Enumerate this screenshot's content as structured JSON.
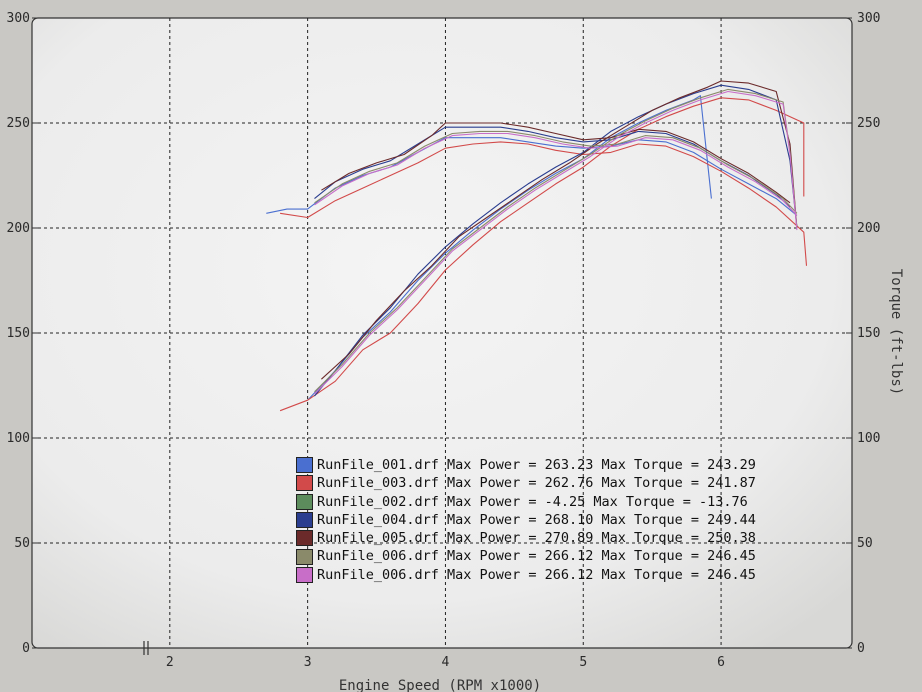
{
  "chart_data": {
    "type": "line",
    "xlabel": "Engine Speed (RPM x1000)",
    "ylabel_right": "Torque (ft-lbs)",
    "x_ticks": [
      "2",
      "3",
      "4",
      "5",
      "6"
    ],
    "y_ticks_left": [
      "0",
      "50",
      "100",
      "150",
      "200",
      "250",
      "300"
    ],
    "y_ticks_right": [
      "0",
      "50",
      "100",
      "150",
      "200",
      "250",
      "300"
    ],
    "xlim": [
      1.0,
      6.95
    ],
    "ylim": [
      0,
      300
    ],
    "grid": true,
    "legend_position": "bottom-center",
    "series": [
      {
        "name": "RunFile_001.drf",
        "color": "#4a6fd0",
        "power": [
          [
            3.0,
            118
          ],
          [
            3.2,
            132
          ],
          [
            3.4,
            148
          ],
          [
            3.6,
            160
          ],
          [
            3.8,
            175
          ],
          [
            4.0,
            188
          ],
          [
            4.2,
            199
          ],
          [
            4.4,
            209
          ],
          [
            4.6,
            218
          ],
          [
            4.8,
            226
          ],
          [
            5.0,
            233
          ],
          [
            5.2,
            243
          ],
          [
            5.4,
            250
          ],
          [
            5.6,
            256
          ],
          [
            5.8,
            261
          ],
          [
            5.85,
            263
          ],
          [
            5.93,
            214
          ]
        ],
        "torque": [
          [
            2.7,
            207
          ],
          [
            2.85,
            209
          ],
          [
            3.0,
            209
          ],
          [
            3.2,
            219
          ],
          [
            3.4,
            225
          ],
          [
            3.6,
            229
          ],
          [
            3.8,
            236
          ],
          [
            4.0,
            243
          ],
          [
            4.2,
            243
          ],
          [
            4.4,
            243
          ],
          [
            4.6,
            241
          ],
          [
            4.8,
            239
          ],
          [
            5.0,
            238
          ],
          [
            5.2,
            239
          ],
          [
            5.4,
            242
          ],
          [
            5.6,
            241
          ],
          [
            5.8,
            236
          ],
          [
            6.0,
            228
          ],
          [
            6.2,
            221
          ],
          [
            6.4,
            214
          ],
          [
            6.55,
            206
          ]
        ]
      },
      {
        "name": "RunFile_003.drf",
        "color": "#d24a4a",
        "power": [
          [
            2.8,
            113
          ],
          [
            3.0,
            118
          ],
          [
            3.2,
            127
          ],
          [
            3.4,
            142
          ],
          [
            3.6,
            150
          ],
          [
            3.8,
            164
          ],
          [
            4.0,
            180
          ],
          [
            4.2,
            192
          ],
          [
            4.4,
            203
          ],
          [
            4.6,
            212
          ],
          [
            4.8,
            221
          ],
          [
            5.0,
            229
          ],
          [
            5.2,
            239
          ],
          [
            5.4,
            247
          ],
          [
            5.6,
            253
          ],
          [
            5.8,
            258
          ],
          [
            6.0,
            262
          ],
          [
            6.2,
            261
          ],
          [
            6.4,
            256
          ],
          [
            6.6,
            250
          ],
          [
            6.6,
            215
          ]
        ],
        "torque": [
          [
            2.8,
            207
          ],
          [
            3.0,
            205
          ],
          [
            3.2,
            213
          ],
          [
            3.4,
            219
          ],
          [
            3.6,
            225
          ],
          [
            3.8,
            231
          ],
          [
            4.0,
            238
          ],
          [
            4.2,
            240
          ],
          [
            4.4,
            241
          ],
          [
            4.6,
            240
          ],
          [
            4.8,
            237
          ],
          [
            5.0,
            235
          ],
          [
            5.2,
            236
          ],
          [
            5.4,
            240
          ],
          [
            5.6,
            239
          ],
          [
            5.8,
            234
          ],
          [
            6.0,
            227
          ],
          [
            6.2,
            219
          ],
          [
            6.4,
            210
          ],
          [
            6.6,
            198
          ],
          [
            6.62,
            182
          ]
        ]
      },
      {
        "name": "RunFile_002.drf",
        "color": "#5c8c5c",
        "power": [],
        "torque": []
      },
      {
        "name": "RunFile_004.drf",
        "color": "#2a3d8f",
        "power": [
          [
            3.05,
            120
          ],
          [
            3.2,
            132
          ],
          [
            3.4,
            149
          ],
          [
            3.6,
            162
          ],
          [
            3.8,
            178
          ],
          [
            4.0,
            191
          ],
          [
            4.2,
            202
          ],
          [
            4.4,
            212
          ],
          [
            4.6,
            221
          ],
          [
            4.8,
            229
          ],
          [
            5.0,
            236
          ],
          [
            5.2,
            246
          ],
          [
            5.4,
            253
          ],
          [
            5.6,
            259
          ],
          [
            5.8,
            264
          ],
          [
            6.0,
            268
          ],
          [
            6.2,
            266
          ],
          [
            6.4,
            261
          ],
          [
            6.5,
            232
          ],
          [
            6.55,
            200
          ]
        ],
        "torque": [
          [
            3.05,
            214
          ],
          [
            3.2,
            222
          ],
          [
            3.4,
            228
          ],
          [
            3.6,
            232
          ],
          [
            3.8,
            240
          ],
          [
            4.0,
            248
          ],
          [
            4.2,
            248
          ],
          [
            4.4,
            248
          ],
          [
            4.6,
            246
          ],
          [
            4.8,
            243
          ],
          [
            5.0,
            241
          ],
          [
            5.2,
            242
          ],
          [
            5.4,
            246
          ],
          [
            5.6,
            245
          ],
          [
            5.8,
            240
          ],
          [
            6.0,
            232
          ],
          [
            6.2,
            225
          ],
          [
            6.4,
            216
          ],
          [
            6.5,
            210
          ]
        ]
      },
      {
        "name": "RunFile_005.drf",
        "color": "#6b2a2a",
        "power": [
          [
            3.1,
            128
          ],
          [
            3.3,
            140
          ],
          [
            3.5,
            156
          ],
          [
            3.7,
            170
          ],
          [
            3.9,
            182
          ],
          [
            4.1,
            196
          ],
          [
            4.3,
            205
          ],
          [
            4.5,
            214
          ],
          [
            4.7,
            223
          ],
          [
            4.9,
            231
          ],
          [
            5.1,
            240
          ],
          [
            5.3,
            248
          ],
          [
            5.5,
            256
          ],
          [
            5.7,
            262
          ],
          [
            5.9,
            267
          ],
          [
            6.0,
            270
          ],
          [
            6.2,
            269
          ],
          [
            6.4,
            265
          ],
          [
            6.5,
            240
          ],
          [
            6.55,
            200
          ]
        ],
        "torque": [
          [
            3.1,
            218
          ],
          [
            3.3,
            226
          ],
          [
            3.5,
            231
          ],
          [
            3.7,
            235
          ],
          [
            3.9,
            244
          ],
          [
            4.0,
            250
          ],
          [
            4.2,
            250
          ],
          [
            4.4,
            250
          ],
          [
            4.6,
            248
          ],
          [
            4.8,
            245
          ],
          [
            5.0,
            242
          ],
          [
            5.2,
            243
          ],
          [
            5.4,
            247
          ],
          [
            5.6,
            246
          ],
          [
            5.8,
            241
          ],
          [
            6.0,
            233
          ],
          [
            6.2,
            226
          ],
          [
            6.4,
            217
          ],
          [
            6.5,
            212
          ]
        ]
      },
      {
        "name": "RunFile_006.drf",
        "color": "#8a8a6a",
        "power": [
          [
            3.05,
            122
          ],
          [
            3.25,
            135
          ],
          [
            3.45,
            150
          ],
          [
            3.65,
            162
          ],
          [
            3.85,
            176
          ],
          [
            4.05,
            190
          ],
          [
            4.25,
            200
          ],
          [
            4.45,
            210
          ],
          [
            4.65,
            219
          ],
          [
            4.85,
            227
          ],
          [
            5.05,
            235
          ],
          [
            5.25,
            244
          ],
          [
            5.45,
            251
          ],
          [
            5.65,
            257
          ],
          [
            5.85,
            262
          ],
          [
            6.05,
            266
          ],
          [
            6.25,
            264
          ],
          [
            6.45,
            260
          ],
          [
            6.5,
            236
          ],
          [
            6.55,
            200
          ]
        ],
        "torque": [
          [
            3.05,
            212
          ],
          [
            3.25,
            221
          ],
          [
            3.45,
            227
          ],
          [
            3.65,
            231
          ],
          [
            3.85,
            239
          ],
          [
            4.05,
            245
          ],
          [
            4.25,
            246
          ],
          [
            4.45,
            246
          ],
          [
            4.65,
            244
          ],
          [
            4.85,
            241
          ],
          [
            5.05,
            239
          ],
          [
            5.25,
            240
          ],
          [
            5.45,
            244
          ],
          [
            5.65,
            243
          ],
          [
            5.85,
            238
          ],
          [
            6.05,
            230
          ],
          [
            6.25,
            223
          ],
          [
            6.45,
            214
          ],
          [
            6.55,
            207
          ]
        ]
      },
      {
        "name": "RunFile_006.drf",
        "color": "#c86ec8",
        "power": [
          [
            3.05,
            121
          ],
          [
            3.25,
            134
          ],
          [
            3.45,
            149
          ],
          [
            3.65,
            161
          ],
          [
            3.85,
            175
          ],
          [
            4.05,
            189
          ],
          [
            4.25,
            199
          ],
          [
            4.45,
            209
          ],
          [
            4.65,
            218
          ],
          [
            4.85,
            226
          ],
          [
            5.05,
            234
          ],
          [
            5.25,
            243
          ],
          [
            5.45,
            250
          ],
          [
            5.65,
            256
          ],
          [
            5.85,
            261
          ],
          [
            6.05,
            265
          ],
          [
            6.25,
            263
          ],
          [
            6.45,
            259
          ],
          [
            6.5,
            235
          ],
          [
            6.55,
            199
          ]
        ],
        "torque": [
          [
            3.05,
            211
          ],
          [
            3.25,
            220
          ],
          [
            3.45,
            226
          ],
          [
            3.65,
            230
          ],
          [
            3.85,
            238
          ],
          [
            4.05,
            244
          ],
          [
            4.25,
            245
          ],
          [
            4.45,
            245
          ],
          [
            4.65,
            243
          ],
          [
            4.85,
            240
          ],
          [
            5.05,
            238
          ],
          [
            5.25,
            239
          ],
          [
            5.45,
            243
          ],
          [
            5.65,
            242
          ],
          [
            5.85,
            237
          ],
          [
            6.05,
            229
          ],
          [
            6.25,
            222
          ],
          [
            6.45,
            213
          ],
          [
            6.55,
            206
          ]
        ]
      }
    ],
    "legend": [
      {
        "color": "#4a6fd0",
        "text": "RunFile_001.drf Max Power = 263.23 Max Torque = 243.29"
      },
      {
        "color": "#d24a4a",
        "text": "RunFile_003.drf Max Power = 262.76 Max Torque = 241.87"
      },
      {
        "color": "#5c8c5c",
        "text": "RunFile_002.drf Max Power = -4.25 Max Torque = -13.76"
      },
      {
        "color": "#2a3d8f",
        "text": "RunFile_004.drf Max Power = 268.10 Max Torque = 249.44"
      },
      {
        "color": "#6b2a2a",
        "text": "RunFile_005.drf Max Power = 270.89 Max Torque = 250.38"
      },
      {
        "color": "#8a8a6a",
        "text": "RunFile_006.drf Max Power = 266.12 Max Torque = 246.45"
      },
      {
        "color": "#c86ec8",
        "text": "RunFile_006.drf Max Power = 266.12 Max Torque = 246.45"
      }
    ]
  }
}
